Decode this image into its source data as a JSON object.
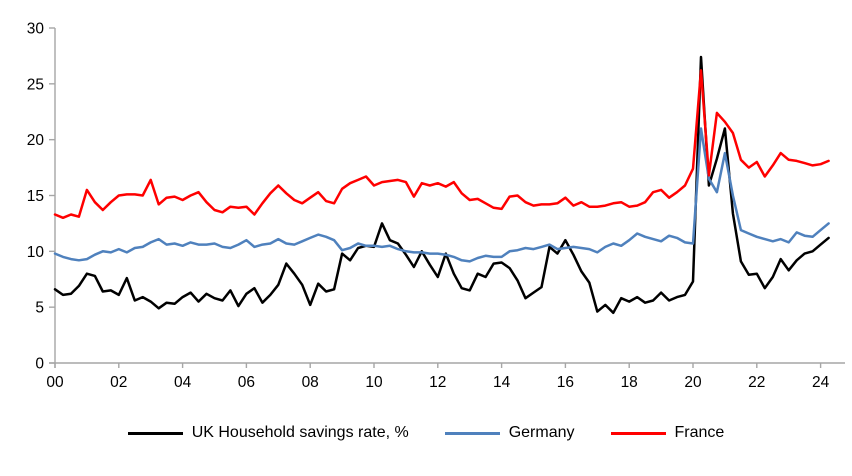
{
  "chart_data": {
    "type": "line",
    "title": "",
    "grid": false,
    "legend_position": "bottom",
    "axis_color": "#a6a6a6",
    "xlim": [
      2000,
      2024.75
    ],
    "ylim": [
      0,
      30
    ],
    "x_start": 2000,
    "x_step": 0.25,
    "x_unit": "quarter",
    "y_ticks": [
      "0",
      "5",
      "10",
      "15",
      "20",
      "25",
      "30"
    ],
    "x_tick_labels": [
      "00",
      "02",
      "04",
      "06",
      "08",
      "10",
      "12",
      "14",
      "16",
      "18",
      "20",
      "22",
      "24"
    ],
    "series": [
      {
        "id": "uk",
        "name": "UK Household savings rate, %",
        "color": "#000000",
        "values": [
          6.6,
          6.1,
          6.2,
          6.9,
          8.0,
          7.8,
          6.4,
          6.5,
          6.1,
          7.6,
          5.6,
          5.9,
          5.5,
          4.9,
          5.4,
          5.3,
          5.9,
          6.3,
          5.5,
          6.2,
          5.8,
          5.6,
          6.5,
          5.1,
          6.2,
          6.7,
          5.4,
          6.1,
          7.0,
          8.9,
          8.0,
          7.0,
          5.2,
          7.1,
          6.4,
          6.6,
          9.8,
          9.2,
          10.3,
          10.5,
          10.4,
          12.5,
          11.0,
          10.7,
          9.7,
          8.6,
          10.0,
          8.8,
          7.7,
          9.8,
          8.0,
          6.7,
          6.5,
          8.0,
          7.7,
          8.9,
          9.0,
          8.5,
          7.4,
          5.8,
          6.3,
          6.8,
          10.4,
          9.8,
          11.0,
          9.7,
          8.2,
          7.2,
          4.6,
          5.2,
          4.5,
          5.8,
          5.5,
          5.9,
          5.4,
          5.6,
          6.3,
          5.6,
          5.9,
          6.1,
          7.3,
          27.4,
          15.9,
          18.3,
          21.0,
          13.4,
          9.1,
          7.9,
          8.0,
          6.7,
          7.7,
          9.3,
          8.3,
          9.2,
          9.8,
          10.0,
          10.6,
          11.2
        ]
      },
      {
        "id": "germany",
        "name": "Germany",
        "color": "#4f81bd",
        "values": [
          9.8,
          9.5,
          9.3,
          9.2,
          9.3,
          9.7,
          10.0,
          9.9,
          10.2,
          9.9,
          10.3,
          10.4,
          10.8,
          11.1,
          10.6,
          10.7,
          10.5,
          10.8,
          10.6,
          10.6,
          10.7,
          10.4,
          10.3,
          10.6,
          11.0,
          10.4,
          10.6,
          10.7,
          11.1,
          10.7,
          10.6,
          10.9,
          11.2,
          11.5,
          11.3,
          11.0,
          10.1,
          10.3,
          10.7,
          10.5,
          10.5,
          10.4,
          10.5,
          10.2,
          10.0,
          9.9,
          9.9,
          9.8,
          9.8,
          9.7,
          9.5,
          9.2,
          9.1,
          9.4,
          9.6,
          9.5,
          9.5,
          10.0,
          10.1,
          10.3,
          10.2,
          10.4,
          10.6,
          10.2,
          10.3,
          10.4,
          10.3,
          10.2,
          9.9,
          10.4,
          10.7,
          10.5,
          11.0,
          11.6,
          11.3,
          11.1,
          10.9,
          11.4,
          11.2,
          10.8,
          10.7,
          21.0,
          16.5,
          15.3,
          18.8,
          15.0,
          11.9,
          11.6,
          11.3,
          11.1,
          10.9,
          11.1,
          10.8,
          11.7,
          11.4,
          11.3,
          11.9,
          12.5
        ]
      },
      {
        "id": "france",
        "name": "France",
        "color": "#ff0000",
        "values": [
          13.3,
          13.0,
          13.3,
          13.1,
          15.5,
          14.4,
          13.7,
          14.4,
          15.0,
          15.1,
          15.1,
          15.0,
          16.4,
          14.2,
          14.8,
          14.9,
          14.6,
          15.0,
          15.3,
          14.4,
          13.7,
          13.5,
          14.0,
          13.9,
          14.0,
          13.3,
          14.3,
          15.2,
          15.9,
          15.2,
          14.6,
          14.3,
          14.8,
          15.3,
          14.5,
          14.3,
          15.6,
          16.1,
          16.4,
          16.7,
          15.9,
          16.2,
          16.3,
          16.4,
          16.2,
          14.9,
          16.1,
          15.9,
          16.1,
          15.8,
          16.2,
          15.2,
          14.6,
          14.7,
          14.3,
          13.9,
          13.8,
          14.9,
          15.0,
          14.4,
          14.1,
          14.2,
          14.2,
          14.3,
          14.8,
          14.1,
          14.4,
          14.0,
          14.0,
          14.1,
          14.3,
          14.4,
          14.0,
          14.1,
          14.4,
          15.3,
          15.5,
          14.8,
          15.3,
          15.9,
          17.4,
          26.2,
          16.8,
          22.4,
          21.6,
          20.6,
          18.2,
          17.5,
          18.0,
          16.7,
          17.7,
          18.8,
          18.2,
          18.1,
          17.9,
          17.7,
          17.8,
          18.1
        ]
      }
    ]
  }
}
